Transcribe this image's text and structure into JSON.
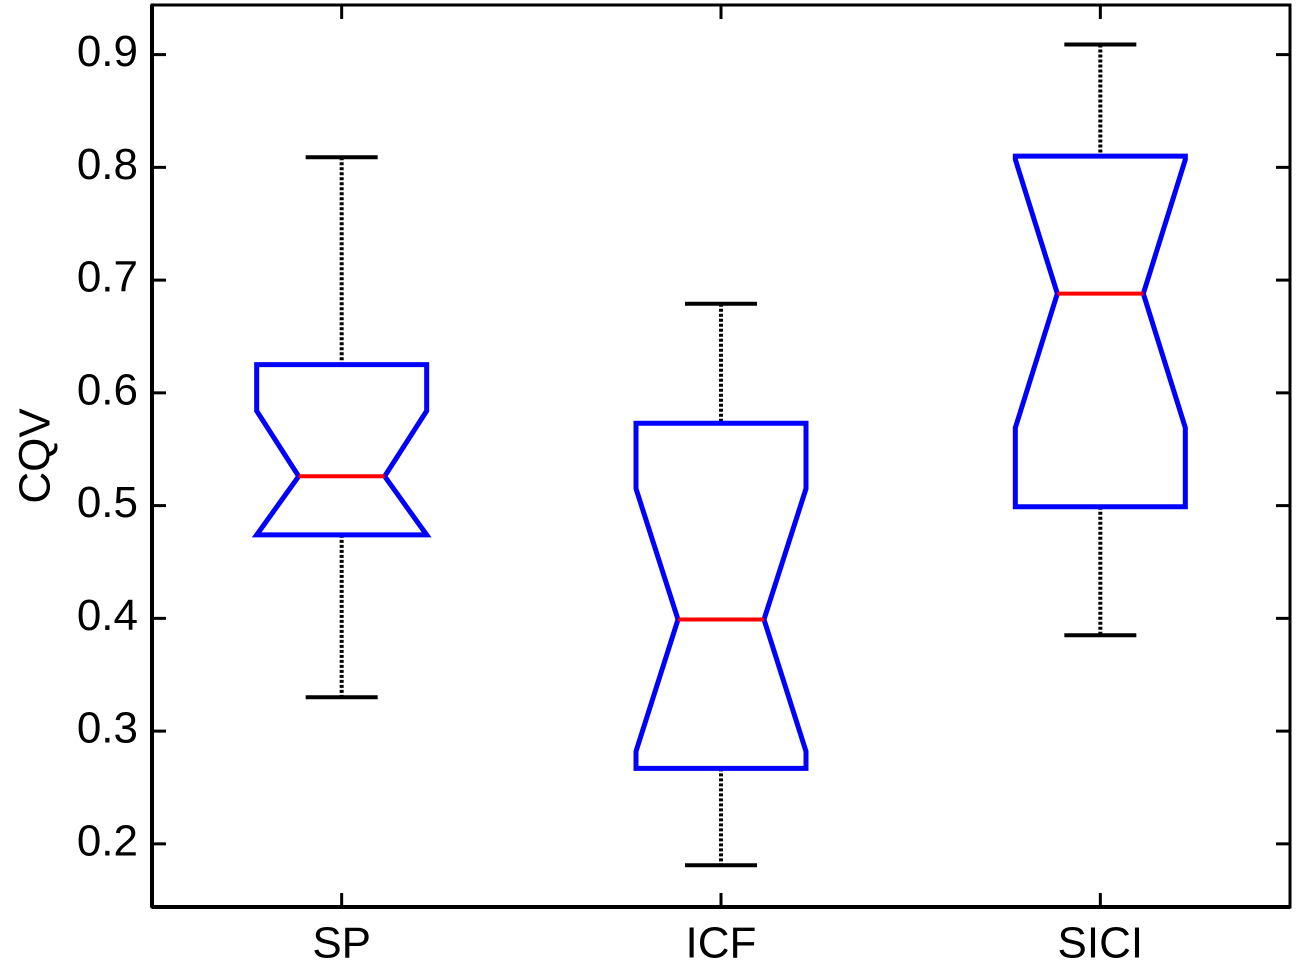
{
  "chart_data": {
    "type": "box",
    "ylabel": "CQV",
    "categories": [
      "SP",
      "ICF",
      "SICI"
    ],
    "boxes": [
      {
        "min": 0.33,
        "q1": 0.474,
        "median": 0.526,
        "q3": 0.625,
        "max": 0.809,
        "notch": [
          0.468,
          0.584
        ]
      },
      {
        "min": 0.181,
        "q1": 0.267,
        "median": 0.399,
        "q3": 0.573,
        "max": 0.679,
        "notch": [
          0.282,
          0.515
        ]
      },
      {
        "min": 0.385,
        "q1": 0.499,
        "median": 0.688,
        "q3": 0.81,
        "max": 0.909,
        "notch": [
          0.569,
          0.807
        ]
      }
    ],
    "box_color": "#0000ff",
    "median_color": "#ff0000",
    "whisker_color": "#000000",
    "ylim": [
      0.144,
      0.944
    ],
    "yticks": [
      0.2,
      0.3,
      0.4,
      0.5,
      0.6,
      0.7,
      0.8,
      0.9
    ],
    "grid": false
  }
}
